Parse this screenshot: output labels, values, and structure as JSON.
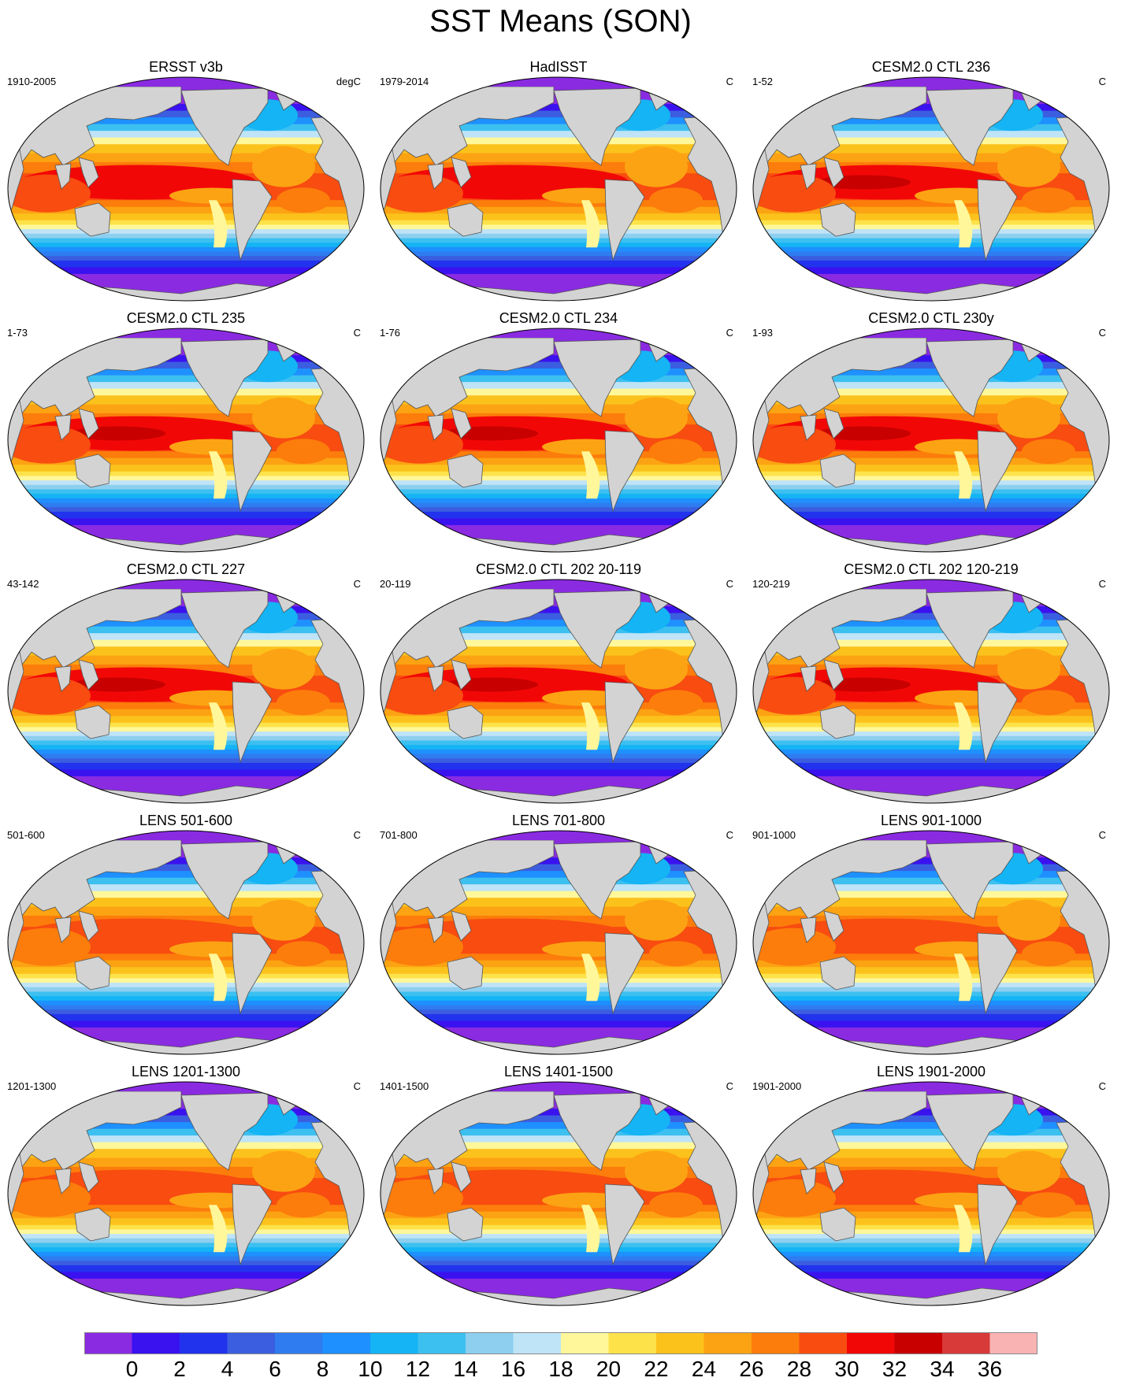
{
  "title": "SST Means (SON)",
  "panels": [
    {
      "title": "ERSST v3b",
      "left": "1910-2005",
      "right": "degC",
      "pattern": "obs1"
    },
    {
      "title": "HadISST",
      "left": "1979-2014",
      "right": "C",
      "pattern": "obs2"
    },
    {
      "title": "CESM2.0 CTL 236",
      "left": "1-52",
      "right": "C",
      "pattern": "cesm"
    },
    {
      "title": "CESM2.0 CTL 235",
      "left": "1-73",
      "right": "C",
      "pattern": "cesm"
    },
    {
      "title": "CESM2.0 CTL 234",
      "left": "1-76",
      "right": "C",
      "pattern": "cesm"
    },
    {
      "title": "CESM2.0 CTL 230y",
      "left": "1-93",
      "right": "C",
      "pattern": "cesm"
    },
    {
      "title": "CESM2.0 CTL 227",
      "left": "43-142",
      "right": "C",
      "pattern": "cesm"
    },
    {
      "title": "CESM2.0 CTL 202 20-119",
      "left": "20-119",
      "right": "C",
      "pattern": "cesm"
    },
    {
      "title": "CESM2.0 CTL 202 120-219",
      "left": "120-219",
      "right": "C",
      "pattern": "cesm"
    },
    {
      "title": "LENS 501-600",
      "left": "501-600",
      "right": "C",
      "pattern": "lens"
    },
    {
      "title": "LENS 701-800",
      "left": "701-800",
      "right": "C",
      "pattern": "lens"
    },
    {
      "title": "LENS 901-1000",
      "left": "901-1000",
      "right": "C",
      "pattern": "lens"
    },
    {
      "title": "LENS 1201-1300",
      "left": "1201-1300",
      "right": "C",
      "pattern": "lens"
    },
    {
      "title": "LENS 1401-1500",
      "left": "1401-1500",
      "right": "C",
      "pattern": "lens"
    },
    {
      "title": "LENS 1901-2000",
      "left": "1901-2000",
      "right": "C",
      "pattern": "lens"
    }
  ],
  "colorbar": {
    "labels": [
      "0",
      "2",
      "4",
      "6",
      "8",
      "10",
      "12",
      "14",
      "16",
      "18",
      "20",
      "22",
      "24",
      "26",
      "28",
      "30",
      "32",
      "34",
      "36"
    ],
    "colors": [
      "#8a2be2",
      "#3a12f0",
      "#2233ee",
      "#3b5ee0",
      "#2f7cf0",
      "#1e90ff",
      "#14b4f5",
      "#3cc0f0",
      "#8ecfef",
      "#bfe3f7",
      "#fff79a",
      "#fde24a",
      "#fcc21c",
      "#fca313",
      "#fc7d0b",
      "#f84c10",
      "#f20707",
      "#c80000",
      "#d83a3a",
      "#f9b3b3"
    ]
  },
  "land_color": "#d3d3d3",
  "ocean_frame_color": "#000000"
}
